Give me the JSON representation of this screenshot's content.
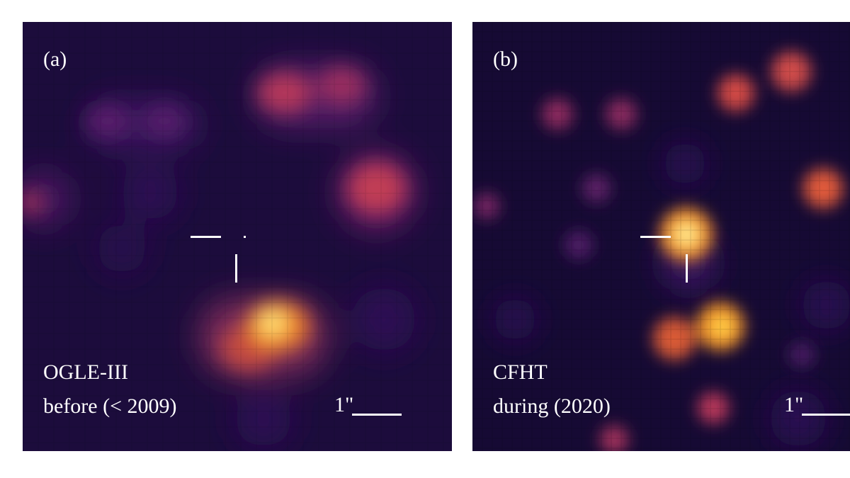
{
  "panels": [
    {
      "id": "a",
      "label": "(a)",
      "survey": "OGLE-III",
      "epoch": "before (< 2009)",
      "scale_label": "1\""
    },
    {
      "id": "b",
      "label": "(b)",
      "survey": "CFHT",
      "epoch": "during (2020)",
      "scale_label": "1\""
    }
  ],
  "colormap": "inferno-like (black → purple → orange → yellow)"
}
